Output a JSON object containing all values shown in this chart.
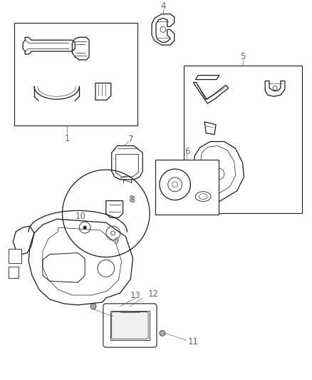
{
  "background_color": "#ffffff",
  "line_color": "#1a1a1a",
  "label_color": "#666666",
  "fig_width": 4.38,
  "fig_height": 5.33,
  "dpi": 100
}
